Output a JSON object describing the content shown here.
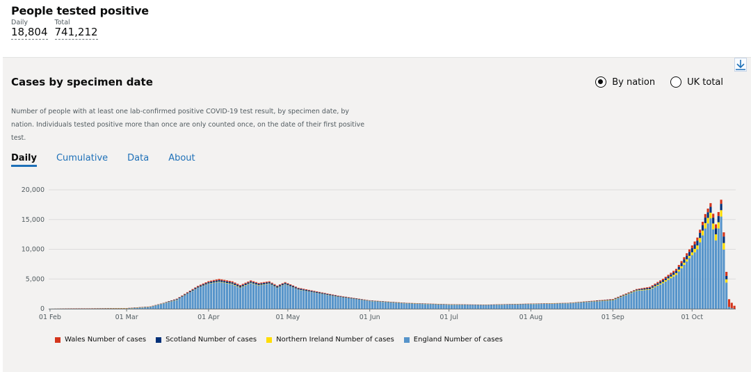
{
  "headline": {
    "title": "People tested positive",
    "daily_label": "Daily",
    "daily_value": "18,804",
    "total_label": "Total",
    "total_value": "741,212"
  },
  "card": {
    "title": "Cases by specimen date",
    "radio_options": [
      "By nation",
      "UK total"
    ],
    "selected_radio": "By nation",
    "description": "Number of people with at least one lab-confirmed positive COVID-19 test result, by specimen date, by nation. Individuals tested positive more than once are only counted once, on the date of their first positive test.",
    "tabs": [
      "Daily",
      "Cumulative",
      "Data",
      "About"
    ],
    "active_tab": "Daily",
    "download_icon": "download-icon"
  },
  "colors": {
    "England": "#5694ca",
    "Northern Ireland": "#ffdd00",
    "Scotland": "#003078",
    "Wales": "#d4351c"
  },
  "chart_data": {
    "type": "bar",
    "stacked": true,
    "x_start": "2020-02-01",
    "x_end": "2020-10-17",
    "xticks": [
      {
        "date": "2020-02-01",
        "label": "01 Feb"
      },
      {
        "date": "2020-03-01",
        "label": "01 Mar"
      },
      {
        "date": "2020-04-01",
        "label": "01 Apr"
      },
      {
        "date": "2020-05-01",
        "label": "01 May"
      },
      {
        "date": "2020-06-01",
        "label": "01 Jun"
      },
      {
        "date": "2020-07-01",
        "label": "01 Jul"
      },
      {
        "date": "2020-08-01",
        "label": "01 Aug"
      },
      {
        "date": "2020-09-01",
        "label": "01 Sep"
      },
      {
        "date": "2020-10-01",
        "label": "01 Oct"
      }
    ],
    "yticks": [
      0,
      5000,
      10000,
      15000,
      20000
    ],
    "ytick_labels": [
      "0",
      "5,000",
      "10,000",
      "15,000",
      "20,000"
    ],
    "ylim": [
      0,
      20000
    ],
    "grid": true,
    "legend_position": "bottom",
    "series_order": [
      "England",
      "Northern Ireland",
      "Scotland",
      "Wales"
    ],
    "legend": [
      "Wales Number of cases",
      "Scotland Number of cases",
      "Northern Ireland Number of cases",
      "England Number of cases"
    ],
    "england_anchors": [
      [
        "2020-02-01",
        0
      ],
      [
        "2020-03-01",
        50
      ],
      [
        "2020-03-10",
        300
      ],
      [
        "2020-03-20",
        1500
      ],
      [
        "2020-03-28",
        3500
      ],
      [
        "2020-04-01",
        4200
      ],
      [
        "2020-04-05",
        4500
      ],
      [
        "2020-04-10",
        4100
      ],
      [
        "2020-04-13",
        3500
      ],
      [
        "2020-04-17",
        4300
      ],
      [
        "2020-04-20",
        3900
      ],
      [
        "2020-04-24",
        4200
      ],
      [
        "2020-04-27",
        3500
      ],
      [
        "2020-04-30",
        4100
      ],
      [
        "2020-05-05",
        3200
      ],
      [
        "2020-05-10",
        2800
      ],
      [
        "2020-05-20",
        2000
      ],
      [
        "2020-06-01",
        1300
      ],
      [
        "2020-06-15",
        900
      ],
      [
        "2020-07-01",
        700
      ],
      [
        "2020-07-15",
        650
      ],
      [
        "2020-08-01",
        800
      ],
      [
        "2020-08-15",
        900
      ],
      [
        "2020-09-01",
        1400
      ],
      [
        "2020-09-10",
        3000
      ],
      [
        "2020-09-15",
        3200
      ],
      [
        "2020-09-20",
        4300
      ],
      [
        "2020-09-25",
        5700
      ],
      [
        "2020-09-30",
        8500
      ],
      [
        "2020-10-03",
        10000
      ],
      [
        "2020-10-06",
        13500
      ],
      [
        "2020-10-08",
        15200
      ],
      [
        "2020-10-10",
        11500
      ],
      [
        "2020-10-12",
        15500
      ],
      [
        "2020-10-14",
        4400
      ],
      [
        "2020-10-15",
        300
      ],
      [
        "2020-10-16",
        100
      ],
      [
        "2020-10-17",
        0
      ]
    ],
    "scotland_anchors": [
      [
        "2020-02-01",
        0
      ],
      [
        "2020-03-15",
        50
      ],
      [
        "2020-04-05",
        250
      ],
      [
        "2020-05-01",
        200
      ],
      [
        "2020-06-01",
        60
      ],
      [
        "2020-07-15",
        15
      ],
      [
        "2020-08-15",
        40
      ],
      [
        "2020-09-10",
        120
      ],
      [
        "2020-09-25",
        400
      ],
      [
        "2020-10-05",
        900
      ],
      [
        "2020-10-13",
        1100
      ],
      [
        "2020-10-15",
        0
      ],
      [
        "2020-10-17",
        0
      ]
    ],
    "ni_anchors": [
      [
        "2020-02-01",
        0
      ],
      [
        "2020-03-20",
        20
      ],
      [
        "2020-04-10",
        80
      ],
      [
        "2020-05-10",
        30
      ],
      [
        "2020-07-01",
        5
      ],
      [
        "2020-08-15",
        20
      ],
      [
        "2020-09-15",
        100
      ],
      [
        "2020-09-30",
        400
      ],
      [
        "2020-10-06",
        900
      ],
      [
        "2020-10-13",
        1100
      ],
      [
        "2020-10-15",
        0
      ],
      [
        "2020-10-17",
        0
      ]
    ],
    "wales_anchors": [
      [
        "2020-02-01",
        0
      ],
      [
        "2020-03-15",
        30
      ],
      [
        "2020-04-05",
        200
      ],
      [
        "2020-05-01",
        120
      ],
      [
        "2020-06-01",
        40
      ],
      [
        "2020-07-15",
        20
      ],
      [
        "2020-08-15",
        25
      ],
      [
        "2020-09-10",
        100
      ],
      [
        "2020-09-25",
        300
      ],
      [
        "2020-10-06",
        600
      ],
      [
        "2020-10-13",
        700
      ],
      [
        "2020-10-14",
        700
      ],
      [
        "2020-10-15",
        1300
      ],
      [
        "2020-10-16",
        900
      ],
      [
        "2020-10-17",
        500
      ]
    ]
  }
}
